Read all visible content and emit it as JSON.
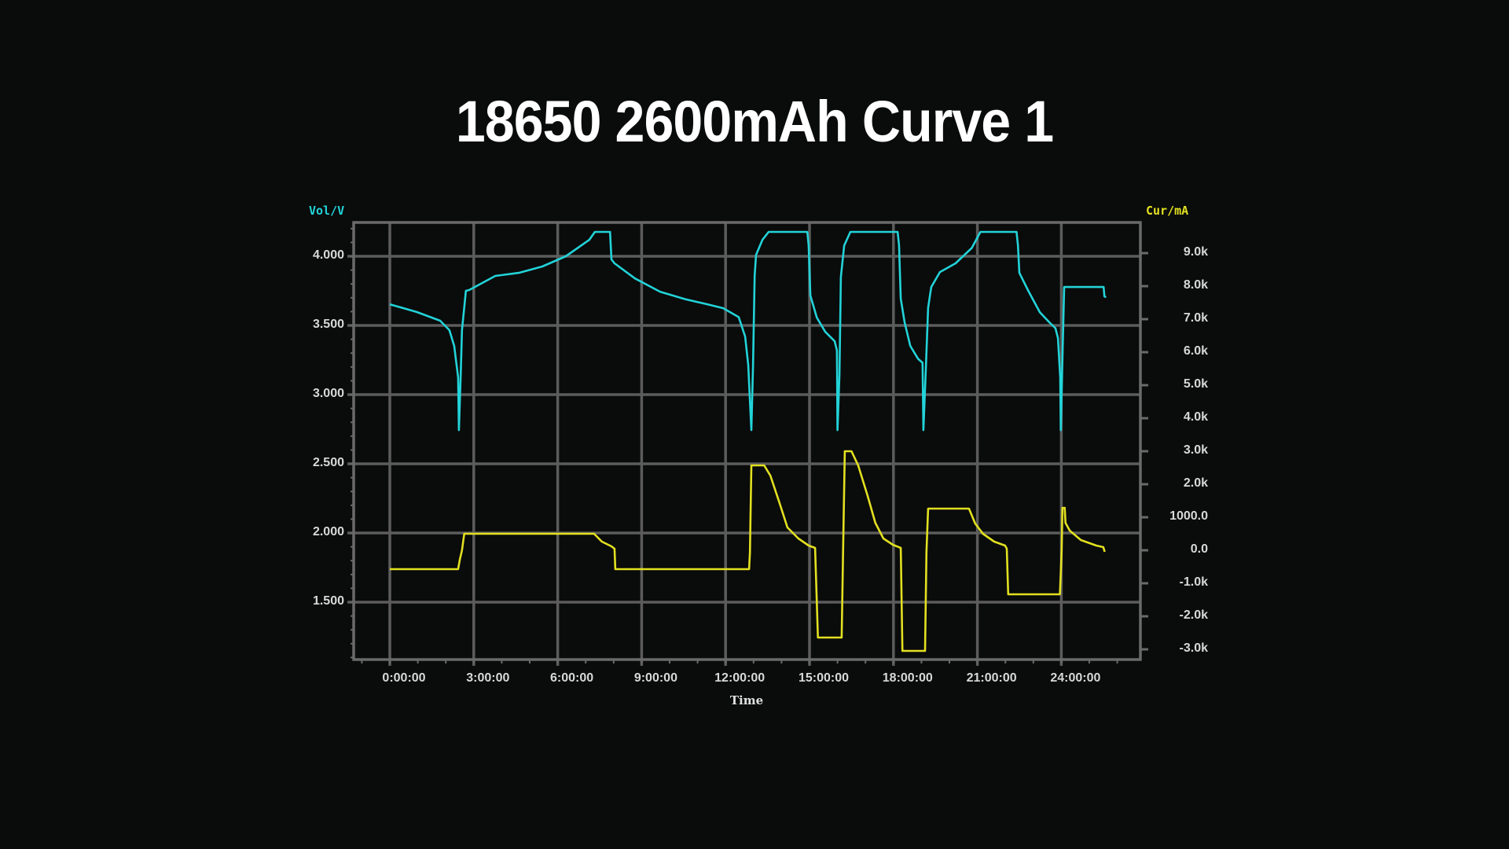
{
  "title": "18650 2600mAh Curve 1",
  "chart_data": {
    "type": "line",
    "title": "18650 2600mAh Curve 1",
    "xlabel": "Time",
    "ylabel_left": "Vol/V",
    "ylabel_right": "Cur/mA",
    "x_unit": "hours",
    "x_ticks": [
      "0:00:00",
      "3:00:00",
      "6:00:00",
      "9:00:00",
      "12:00:00",
      "15:00:00",
      "18:00:00",
      "21:00:00",
      "24:00:00"
    ],
    "x_tick_hours": [
      0,
      3,
      6,
      9,
      12,
      15,
      18,
      21,
      24
    ],
    "xlim": [
      -1.3,
      26.5
    ],
    "y_left_ticks": [
      "4.000",
      "3.500",
      "3.000",
      "2.500",
      "2.000",
      "1.500"
    ],
    "y_left_tick_values": [
      4.0,
      3.5,
      3.0,
      2.5,
      2.0,
      1.5
    ],
    "ylim_left": [
      1.08,
      4.25
    ],
    "y_right_ticks": [
      "9.0k",
      "8.0k",
      "7.0k",
      "6.0k",
      "5.0k",
      "4.0k",
      "3.0k",
      "2.0k",
      "1000.0",
      "0.0",
      "-1.0k",
      "-2.0k",
      "-3.0k"
    ],
    "y_right_tick_values": [
      9000,
      8000,
      7000,
      6000,
      5000,
      4000,
      3000,
      2000,
      1000,
      0,
      -1000,
      -2000,
      -3000
    ],
    "ylim_right": [
      -3330,
      9950
    ],
    "grid": true,
    "legend": "none",
    "series": [
      {
        "name": "Voltage (V)",
        "axis": "left",
        "color": "#22d3d8",
        "x": [
          0,
          0.96,
          1.8,
          2.13,
          2.3,
          2.44,
          2.47,
          2.53,
          2.58,
          2.72,
          2.84,
          3.77,
          4.61,
          5.45,
          6.29,
          7.13,
          7.33,
          7.87,
          7.92,
          8.03,
          8.76,
          9.66,
          10.56,
          11.35,
          11.91,
          12.47,
          12.7,
          12.81,
          12.92,
          12.98,
          13.04,
          13.09,
          13.32,
          13.54,
          14.92,
          14.97,
          15.03,
          15.26,
          15.56,
          15.9,
          15.98,
          16.0,
          16.07,
          16.12,
          16.24,
          16.46,
          18.15,
          18.2,
          18.26,
          18.4,
          18.6,
          18.88,
          19.04,
          19.07,
          19.16,
          19.24,
          19.35,
          19.66,
          20.22,
          20.8,
          21.11,
          22.4,
          22.45,
          22.5,
          22.82,
          23.23,
          23.57,
          23.79,
          23.88,
          23.96,
          23.98,
          24.05,
          24.1,
          25.51,
          25.54,
          25.6
        ],
        "values": [
          3.653,
          3.597,
          3.534,
          3.466,
          3.352,
          3.125,
          2.744,
          3.125,
          3.466,
          3.75,
          3.756,
          3.858,
          3.88,
          3.926,
          4.0,
          4.119,
          4.176,
          4.176,
          3.977,
          3.949,
          3.84,
          3.744,
          3.69,
          3.653,
          3.625,
          3.56,
          3.42,
          3.216,
          2.744,
          3.2,
          3.86,
          4.01,
          4.12,
          4.176,
          4.176,
          4.08,
          3.716,
          3.557,
          3.455,
          3.386,
          3.318,
          2.744,
          3.148,
          3.85,
          4.077,
          4.176,
          4.176,
          4.08,
          3.693,
          3.523,
          3.352,
          3.259,
          3.23,
          2.744,
          3.2,
          3.627,
          3.778,
          3.886,
          3.949,
          4.06,
          4.176,
          4.176,
          4.08,
          3.88,
          3.75,
          3.596,
          3.523,
          3.48,
          3.409,
          3.125,
          2.744,
          3.352,
          3.778,
          3.778,
          3.71,
          3.704
        ]
      },
      {
        "name": "Current (mA)",
        "axis": "right",
        "color": "#e2e020",
        "x": [
          0,
          2.44,
          2.5,
          2.58,
          2.66,
          7.3,
          7.58,
          7.92,
          8.03,
          8.06,
          12.84,
          12.87,
          12.92,
          13.38,
          13.6,
          13.93,
          14.21,
          14.6,
          14.97,
          15.2,
          15.3,
          16.15,
          16.2,
          16.26,
          16.5,
          16.74,
          17.07,
          17.35,
          17.64,
          17.98,
          18.26,
          18.32,
          19.13,
          19.18,
          19.24,
          20.7,
          20.92,
          21.2,
          21.6,
          21.99,
          22.05,
          22.1,
          23.95,
          24.01,
          24.04,
          24.12,
          24.15,
          24.3,
          24.7,
          25.25,
          25.5,
          25.55
        ],
        "values": [
          -571,
          -571,
          -290,
          0,
          500,
          500,
          262,
          119,
          48,
          -571,
          -571,
          -71,
          2571,
          2571,
          2262,
          1429,
          690,
          357,
          143,
          71,
          -2643,
          -2643,
          -50,
          3000,
          3000,
          2571,
          1667,
          833,
          357,
          167,
          71,
          -3048,
          -3048,
          -50,
          1262,
          1262,
          810,
          500,
          262,
          143,
          48,
          -1333,
          -1333,
          0,
          1286,
          1286,
          830,
          595,
          310,
          143,
          95,
          -48
        ]
      }
    ]
  },
  "colors": {
    "background": "#0a0b0b",
    "grid": "#5c5c5c",
    "axis": "#6a6a6a",
    "voltage": "#22d3d8",
    "current": "#e2e020",
    "tick_text": "#d8d8d8",
    "title_text": "#ffffff"
  }
}
